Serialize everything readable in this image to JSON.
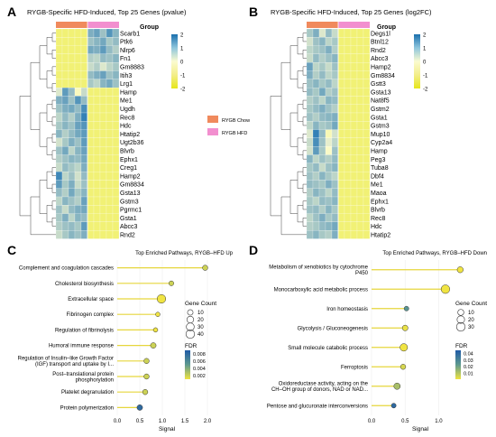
{
  "colors": {
    "heat_low": "#e6e619",
    "heat_mid": "#fbfbd0",
    "heat_high": "#2a7bb5",
    "chow": "#f08a5d",
    "hfd": "#f28fcf",
    "stem": "#e6d63c",
    "fdr_high": "#1f5aa6",
    "fdr_low": "#f0e442"
  },
  "panels": {
    "A": {
      "letter": "A"
    },
    "B": {
      "letter": "B"
    },
    "C": {
      "letter": "C"
    },
    "D": {
      "letter": "D"
    }
  },
  "legend_group": {
    "title": "Group",
    "items": [
      {
        "label": "RYGB Chow",
        "color": "#f08a5d"
      },
      {
        "label": "RYGB HFD",
        "color": "#f28fcf"
      }
    ]
  },
  "chart_data": [
    {
      "type": "heatmap",
      "title": "RYGB-Specific HFD-Induced, Top 25 Genes (pvalue)",
      "genes": [
        "Scarb1",
        "Ptk6",
        "Nlrp6",
        "Fn1",
        "Gm8883",
        "Itih3",
        "Lrg1",
        "Hamp",
        "Me1",
        "Ugdh",
        "Rec8",
        "Hdc",
        "Htatip2",
        "Ugt2b36",
        "Blvrb",
        "Ephx1",
        "Creg1",
        "Hamp2",
        "Gm8834",
        "Gsta13",
        "Gstm3",
        "Pgrmc1",
        "Gsta1",
        "Abcc3",
        "Rnd2"
      ],
      "groups": [
        "RYGB Chow",
        "RYGB Chow",
        "RYGB Chow",
        "RYGB Chow",
        "RYGB Chow",
        "RYGB HFD",
        "RYGB HFD",
        "RYGB HFD",
        "RYGB HFD",
        "RYGB HFD"
      ],
      "colorbar": {
        "ticks": [
          2,
          1,
          0,
          -1,
          -2
        ]
      },
      "values": [
        [
          -1,
          -1,
          -1,
          -1,
          -1,
          1.2,
          1.4,
          0.9,
          1.6,
          1.1
        ],
        [
          -1,
          -1,
          -1,
          -1,
          -1,
          0.9,
          1.1,
          1.3,
          0.8,
          1.0
        ],
        [
          -1,
          -1,
          -1,
          -1,
          -1,
          1.3,
          1.2,
          1.5,
          1.0,
          0.7
        ],
        [
          -1,
          -1,
          -1,
          -1,
          -1,
          0.7,
          0.6,
          1.0,
          0.9,
          1.1
        ],
        [
          -1,
          -1,
          -1,
          -1,
          -1,
          0.5,
          0.7,
          0.3,
          0.6,
          0.8
        ],
        [
          -1,
          -1,
          -1,
          -1,
          -1,
          1.0,
          1.2,
          1.4,
          0.9,
          1.1
        ],
        [
          -1,
          -1,
          -1,
          -1,
          -1,
          0.8,
          0.6,
          1.1,
          1.3,
          0.9
        ],
        [
          0.3,
          1.5,
          1.0,
          -0.2,
          0.5,
          -1,
          -1,
          -1,
          -1,
          -1
        ],
        [
          1.2,
          1.4,
          0.9,
          1.6,
          1.0,
          -1,
          -1,
          -1,
          -1,
          -1
        ],
        [
          0.9,
          1.2,
          1.3,
          1.0,
          1.7,
          -1,
          -1,
          -1,
          -1,
          -1
        ],
        [
          0.6,
          1.0,
          0.7,
          1.2,
          1.9,
          -1,
          -1,
          -1,
          -1,
          -1
        ],
        [
          0.8,
          1.1,
          0.9,
          1.4,
          1.6,
          -1,
          -1,
          -1,
          -1,
          -1
        ],
        [
          1.1,
          0.7,
          1.0,
          1.3,
          1.5,
          -1,
          -1,
          -1,
          -1,
          -1
        ],
        [
          0.4,
          0.8,
          1.2,
          0.9,
          1.5,
          -1,
          -1,
          -1,
          -1,
          -1
        ],
        [
          0.9,
          1.3,
          0.6,
          1.1,
          1.4,
          -1,
          -1,
          -1,
          -1,
          -1
        ],
        [
          0.7,
          0.9,
          1.1,
          1.0,
          1.3,
          -1,
          -1,
          -1,
          -1,
          -1
        ],
        [
          0.5,
          1.0,
          0.8,
          0.6,
          1.2,
          -1,
          -1,
          -1,
          -1,
          -1
        ],
        [
          1.8,
          0.6,
          0.9,
          0.4,
          1.0,
          -1,
          -1,
          -1,
          -1,
          -1
        ],
        [
          1.5,
          0.8,
          1.2,
          0.5,
          0.9,
          -1,
          -1,
          -1,
          -1,
          -1
        ],
        [
          1.0,
          0.7,
          1.3,
          0.8,
          1.1,
          -1,
          -1,
          -1,
          -1,
          -1
        ],
        [
          0.6,
          1.1,
          0.9,
          0.7,
          1.4,
          -1,
          -1,
          -1,
          -1,
          -1
        ],
        [
          0.9,
          0.5,
          1.0,
          1.2,
          1.3,
          -1,
          -1,
          -1,
          -1,
          -1
        ],
        [
          0.8,
          1.2,
          0.6,
          1.1,
          1.0,
          -1,
          -1,
          -1,
          -1,
          -1
        ],
        [
          0.7,
          0.9,
          1.0,
          0.8,
          1.5,
          -1,
          -1,
          -1,
          -1,
          -1
        ],
        [
          0.5,
          0.8,
          1.1,
          0.9,
          1.2,
          -1,
          -1,
          -1,
          -1,
          -1
        ]
      ]
    },
    {
      "type": "heatmap",
      "title": "RYGB-Specific HFD-Induced, Top 25 Genes (log2FC)",
      "genes": [
        "Degs1l",
        "Btnl12",
        "Rnd2",
        "Abcc3",
        "Hamp2",
        "Gm8834",
        "Gstt3",
        "Gsta13",
        "Nat8f5",
        "Gstm2",
        "Gsta1",
        "Gstm3",
        "Mup10",
        "Cyp2a4",
        "Hamp",
        "Peg3",
        "Tuba8",
        "Dbf4",
        "Me1",
        "Maoa",
        "Ephx1",
        "Blvrb",
        "Rec8",
        "Hdc",
        "Htatip2"
      ],
      "groups": [
        "RYGB Chow",
        "RYGB Chow",
        "RYGB Chow",
        "RYGB Chow",
        "RYGB Chow",
        "RYGB HFD",
        "RYGB HFD",
        "RYGB HFD",
        "RYGB HFD",
        "RYGB HFD"
      ],
      "colorbar": {
        "ticks": [
          2,
          1,
          0,
          -1,
          -2
        ]
      },
      "values": [
        [
          0.8,
          1.2,
          0.3,
          1.0,
          0.5,
          -1,
          -1,
          -1,
          -1,
          -1
        ],
        [
          0.4,
          0.9,
          1.1,
          0.6,
          0.8,
          -1,
          -1,
          -1,
          -1,
          -1
        ],
        [
          0.6,
          0.8,
          0.9,
          1.2,
          0.7,
          -1,
          -1,
          -1,
          -1,
          -1
        ],
        [
          0.5,
          1.0,
          0.7,
          0.9,
          1.1,
          -1,
          -1,
          -1,
          -1,
          -1
        ],
        [
          1.4,
          0.6,
          0.8,
          0.5,
          0.9,
          -1,
          -1,
          -1,
          -1,
          -1
        ],
        [
          1.2,
          0.7,
          1.0,
          0.6,
          0.8,
          -1,
          -1,
          -1,
          -1,
          -1
        ],
        [
          0.9,
          1.1,
          0.8,
          1.0,
          0.6,
          -1,
          -1,
          -1,
          -1,
          -1
        ],
        [
          1.0,
          0.8,
          1.3,
          0.7,
          0.9,
          -1,
          -1,
          -1,
          -1,
          -1
        ],
        [
          0.7,
          0.9,
          0.6,
          1.1,
          1.0,
          -1,
          -1,
          -1,
          -1,
          -1
        ],
        [
          0.8,
          1.0,
          1.2,
          0.9,
          0.7,
          -1,
          -1,
          -1,
          -1,
          -1
        ],
        [
          0.9,
          0.7,
          1.0,
          1.1,
          1.2,
          -1,
          -1,
          -1,
          -1,
          -1
        ],
        [
          0.6,
          1.1,
          0.8,
          0.9,
          1.3,
          -1,
          -1,
          -1,
          -1,
          -1
        ],
        [
          0.3,
          1.9,
          1.0,
          -0.3,
          0.4,
          -1,
          -1,
          -1,
          -1,
          -1
        ],
        [
          0.5,
          1.7,
          0.9,
          0.2,
          0.6,
          -1,
          -1,
          -1,
          -1,
          -1
        ],
        [
          0.4,
          1.5,
          0.8,
          -0.1,
          0.9,
          -1,
          -1,
          -1,
          -1,
          -1
        ],
        [
          1.1,
          0.6,
          0.9,
          0.7,
          1.0,
          -1,
          -1,
          -1,
          -1,
          -1
        ],
        [
          0.8,
          1.0,
          0.5,
          0.9,
          1.1,
          -1,
          -1,
          -1,
          -1,
          -1
        ],
        [
          0.9,
          0.7,
          1.1,
          0.8,
          0.6,
          -1,
          -1,
          -1,
          -1,
          -1
        ],
        [
          1.0,
          0.9,
          0.8,
          1.2,
          0.9,
          -1,
          -1,
          -1,
          -1,
          -1
        ],
        [
          0.7,
          1.1,
          0.9,
          0.6,
          1.0,
          -1,
          -1,
          -1,
          -1,
          -1
        ],
        [
          0.8,
          0.6,
          1.0,
          0.9,
          1.1,
          -1,
          -1,
          -1,
          -1,
          -1
        ],
        [
          0.9,
          1.0,
          0.7,
          1.1,
          0.8,
          -1,
          -1,
          -1,
          -1,
          -1
        ],
        [
          0.6,
          0.9,
          1.2,
          0.8,
          1.0,
          -1,
          -1,
          -1,
          -1,
          -1
        ],
        [
          0.7,
          0.8,
          1.0,
          1.1,
          1.3,
          -1,
          -1,
          -1,
          -1,
          -1
        ],
        [
          0.9,
          1.1,
          0.8,
          0.7,
          1.2,
          -1,
          -1,
          -1,
          -1,
          -1
        ]
      ]
    },
    {
      "type": "scatter",
      "title": "Top Enriched Pathways, RYGB–HFD Up",
      "xlabel": "Signal",
      "xlim": [
        0,
        2.2
      ],
      "xticks": [
        0.0,
        0.5,
        1.0,
        1.5,
        2.0
      ],
      "xtick_labels": [
        "0.0",
        "0.5",
        "1.0",
        "1.5",
        "2.0"
      ],
      "categories": [
        [
          "Complement and coagulation cascades"
        ],
        [
          "Cholesterol biosynthesis"
        ],
        [
          "Extracellular space"
        ],
        [
          "Fibrinogen complex"
        ],
        [
          "Regulation of fibrinolysis"
        ],
        [
          "Humoral immune response"
        ],
        [
          "Regulation of Insulin–like Growth Factor",
          "(IGF) transport and uptake by I..."
        ],
        [
          "Post–translational protein",
          "phosphorylation"
        ],
        [
          "Platelet degranulation"
        ],
        [
          "Protein polymerization"
        ]
      ],
      "signal": [
        1.95,
        1.2,
        0.98,
        0.9,
        0.85,
        0.8,
        0.65,
        0.65,
        0.62,
        0.5
      ],
      "gene_count": [
        8,
        6,
        40,
        4,
        4,
        10,
        8,
        8,
        8,
        10
      ],
      "fdr": [
        0.002,
        0.002,
        0.001,
        0.001,
        0.001,
        0.002,
        0.002,
        0.002,
        0.002,
        0.008
      ],
      "size_legend": {
        "title": "Gene Count",
        "values": [
          10,
          20,
          30,
          40
        ]
      },
      "fdr_legend": {
        "title": "FDR",
        "ticks": [
          0.008,
          0.006,
          0.004,
          0.002
        ],
        "tick_labels": [
          "0.008",
          "0.006",
          "0.004",
          "0.002"
        ],
        "range": [
          0.001,
          0.009
        ]
      }
    },
    {
      "type": "scatter",
      "title": "Top Enriched Pathways, RYGB–HFD Down",
      "xlabel": "Signal",
      "xlim": [
        0,
        1.45
      ],
      "xticks": [
        0.0,
        0.5,
        1.0
      ],
      "xtick_labels": [
        "0.0",
        "0.5",
        "1.0"
      ],
      "categories": [
        [
          "Metabolism of xenobiotics by cytochrome",
          "P450"
        ],
        [
          "Monocarboxylic acid metabolic process"
        ],
        [
          "Iron homeostasis"
        ],
        [
          "Glycolysis / Gluconeogenesis"
        ],
        [
          "Small molecule catabolic process"
        ],
        [
          "Ferroptosis"
        ],
        [
          "Oxidoreductase activity, acting on the",
          "CH–OH group of donors, NAD or NAD..."
        ],
        [
          "Pentose and glucuronate interconversions"
        ]
      ],
      "signal": [
        1.32,
        1.1,
        0.52,
        0.5,
        0.48,
        0.47,
        0.38,
        0.33
      ],
      "gene_count": [
        10,
        30,
        4,
        8,
        20,
        6,
        12,
        4
      ],
      "fdr": [
        0.001,
        0.001,
        0.025,
        0.002,
        0.001,
        0.005,
        0.012,
        0.04
      ],
      "size_legend": {
        "title": "Gene Count",
        "values": [
          10,
          20,
          30
        ]
      },
      "fdr_legend": {
        "title": "FDR",
        "ticks": [
          0.04,
          0.03,
          0.02,
          0.01
        ],
        "tick_labels": [
          "0.04",
          "0.03",
          "0.02",
          "0.01"
        ],
        "range": [
          0.001,
          0.045
        ]
      }
    }
  ]
}
